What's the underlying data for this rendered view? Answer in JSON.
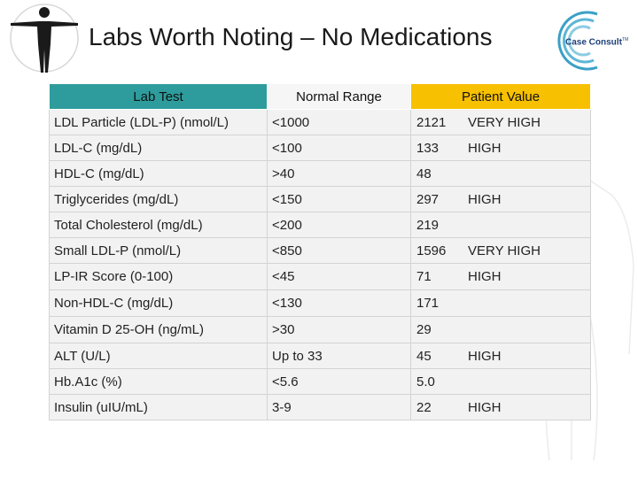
{
  "title": "Labs Worth Noting – No Medications",
  "brand": {
    "name": "Case Consult",
    "trademark": "TM",
    "accent": "#1d3f77",
    "ring_color": "#3aa0c8"
  },
  "colors": {
    "lab_header": "#2e9c9c",
    "range_header": "#f6f6f6",
    "value_header": "#f7c000",
    "row_bg": "#f2f2f2"
  },
  "table": {
    "headers": [
      "Lab Test",
      "Normal Range",
      "Patient Value"
    ],
    "rows": [
      {
        "test": "LDL Particle (LDL-P) (nmol/L)",
        "range": "<1000",
        "value": "2121",
        "flag": "VERY HIGH"
      },
      {
        "test": "LDL-C (mg/dL)",
        "range": "<100",
        "value": "133",
        "flag": "HIGH"
      },
      {
        "test": "HDL-C (mg/dL)",
        "range": ">40",
        "value": "48",
        "flag": ""
      },
      {
        "test": "Triglycerides (mg/dL)",
        "range": "<150",
        "value": "297",
        "flag": "HIGH"
      },
      {
        "test": "Total Cholesterol (mg/dL)",
        "range": "<200",
        "value": "219",
        "flag": ""
      },
      {
        "test": "Small LDL-P (nmol/L)",
        "range": "<850",
        "value": "1596",
        "flag": "VERY HIGH"
      },
      {
        "test": "LP-IR Score (0-100)",
        "range": "<45",
        "value": "71",
        "flag": "HIGH"
      },
      {
        "test": "Non-HDL-C (mg/dL)",
        "range": "<130",
        "value": "171",
        "flag": ""
      },
      {
        "test": "Vitamin D 25-OH (ng/mL)",
        "range": ">30",
        "value": "29",
        "flag": ""
      },
      {
        "test": "ALT (U/L)",
        "range": "Up to 33",
        "value": "45",
        "flag": "HIGH"
      },
      {
        "test": "Hb.A1c (%)",
        "range": "<5.6",
        "value": "5.0",
        "flag": ""
      },
      {
        "test": "Insulin (uIU/mL)",
        "range": "3-9",
        "value": "22",
        "flag": "HIGH"
      }
    ]
  }
}
